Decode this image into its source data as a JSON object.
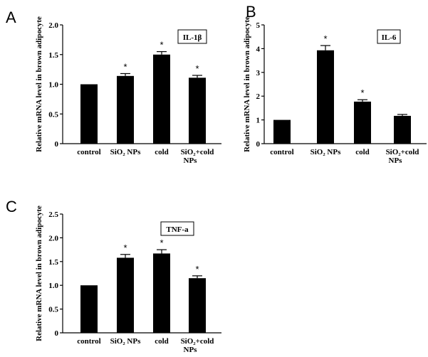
{
  "chart_data": [
    {
      "type": "bar",
      "panel_letter": "A",
      "legend": "IL-1β",
      "ylabel": "Relative mRNA level in brown adipocyte",
      "ylim": [
        0,
        2.0
      ],
      "yticks": [
        "0",
        "0.5",
        "1.0",
        "1.5",
        "2.0"
      ],
      "categories": [
        {
          "line1": "control",
          "line2": ""
        },
        {
          "line1": "SiO₂ NPs",
          "line2": ""
        },
        {
          "line1": "cold",
          "line2": ""
        },
        {
          "line1": "SiO₂+cold",
          "line2": "NPs"
        }
      ],
      "values": [
        1.0,
        1.14,
        1.5,
        1.11
      ],
      "errors": [
        0,
        0.04,
        0.05,
        0.04
      ],
      "significance": [
        "",
        "*",
        "*",
        "*"
      ]
    },
    {
      "type": "bar",
      "panel_letter": "B",
      "legend": "IL-6",
      "ylabel": "Relative mRNA level in brown adipocyte",
      "ylim": [
        0,
        5
      ],
      "yticks": [
        "0",
        "1",
        "2",
        "3",
        "4",
        "5"
      ],
      "categories": [
        {
          "line1": "control",
          "line2": ""
        },
        {
          "line1": "SiO₂ NPs",
          "line2": ""
        },
        {
          "line1": "cold",
          "line2": ""
        },
        {
          "line1": "SiO₂+cold",
          "line2": "NPs"
        }
      ],
      "values": [
        1.0,
        3.93,
        1.77,
        1.17
      ],
      "errors": [
        0,
        0.2,
        0.08,
        0.06
      ],
      "significance": [
        "",
        "*",
        "*",
        ""
      ]
    },
    {
      "type": "bar",
      "panel_letter": "C",
      "legend": "TNF-a",
      "ylabel": "Relative mRNA level in brown adipocyte",
      "ylim": [
        0,
        2.5
      ],
      "yticks": [
        "0",
        "0.5",
        "1.0",
        "1.5",
        "2.0",
        "2.5"
      ],
      "categories": [
        {
          "line1": "control",
          "line2": ""
        },
        {
          "line1": "SiO₂ NPs",
          "line2": ""
        },
        {
          "line1": "cold",
          "line2": ""
        },
        {
          "line1": "SiO₂+cold",
          "line2": "NPs"
        }
      ],
      "values": [
        1.0,
        1.58,
        1.67,
        1.15
      ],
      "errors": [
        0,
        0.07,
        0.08,
        0.05
      ],
      "significance": [
        "",
        "*",
        "*",
        "*"
      ]
    }
  ]
}
